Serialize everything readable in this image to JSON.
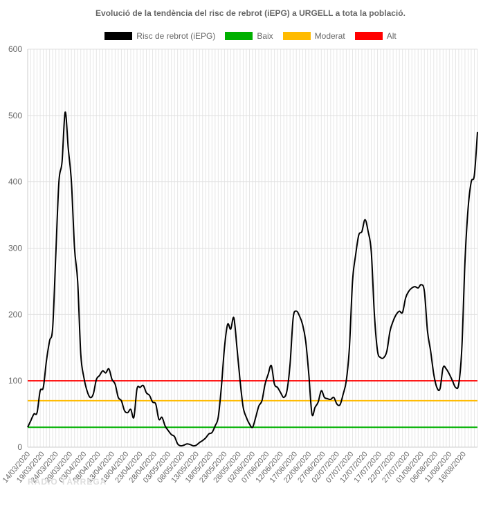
{
  "chart_data": {
    "type": "line",
    "title": "Evolució de la tendència del risc de rebrot (iEPG) a URGELL a tota la població.",
    "ylim": [
      0,
      600
    ],
    "yticks": [
      0,
      100,
      200,
      300,
      400,
      500,
      600
    ],
    "grid": true,
    "legend_position": "top",
    "x_labels": [
      "14/03/2020",
      "19/03/2020",
      "24/03/2020",
      "29/03/2020",
      "03/04/2020",
      "08/04/2020",
      "13/04/2020",
      "18/04/2020",
      "23/04/2020",
      "28/04/2020",
      "03/05/2020",
      "08/05/2020",
      "13/05/2020",
      "18/05/2020",
      "23/05/2020",
      "28/05/2020",
      "02/06/2020",
      "07/06/2020",
      "12/06/2020",
      "17/06/2020",
      "22/06/2020",
      "27/06/2020",
      "02/07/2020",
      "07/07/2020",
      "12/07/2020",
      "17/07/2020",
      "22/07/2020",
      "27/07/2020",
      "01/08/2020",
      "06/08/2020",
      "11/08/2020",
      "16/08/2020"
    ],
    "series": [
      {
        "name": "Risc de rebrot (iEPG)",
        "color": "#000000",
        "values": [
          30,
          40,
          50,
          52,
          85,
          90,
          130,
          160,
          180,
          290,
          400,
          430,
          505,
          450,
          400,
          300,
          250,
          140,
          105,
          85,
          75,
          80,
          102,
          108,
          115,
          112,
          118,
          102,
          95,
          75,
          70,
          55,
          52,
          57,
          45,
          88,
          90,
          93,
          82,
          78,
          68,
          65,
          42,
          45,
          32,
          25,
          19,
          16,
          5,
          2,
          3,
          5,
          4,
          2,
          3,
          7,
          10,
          14,
          20,
          22,
          32,
          45,
          90,
          150,
          185,
          178,
          195,
          150,
          100,
          60,
          45,
          35,
          30,
          45,
          62,
          70,
          95,
          110,
          123,
          95,
          90,
          82,
          75,
          85,
          125,
          195,
          205,
          198,
          185,
          160,
          110,
          50,
          60,
          68,
          85,
          75,
          73,
          72,
          75,
          65,
          64,
          80,
          100,
          150,
          250,
          290,
          320,
          325,
          343,
          325,
          295,
          200,
          145,
          135,
          135,
          145,
          175,
          190,
          200,
          205,
          203,
          225,
          235,
          240,
          242,
          240,
          245,
          235,
          175,
          145,
          110,
          90,
          88,
          120,
          118,
          110,
          100,
          90,
          95,
          150,
          280,
          360,
          400,
          410,
          475
        ]
      },
      {
        "name": "Baix",
        "color": "#00b000",
        "value": 30
      },
      {
        "name": "Moderat",
        "color": "#ffbb00",
        "value": 70
      },
      {
        "name": "Alt",
        "color": "#ff0000",
        "value": 100
      }
    ]
  },
  "watermark": "RÀDIO TÀRREGA"
}
